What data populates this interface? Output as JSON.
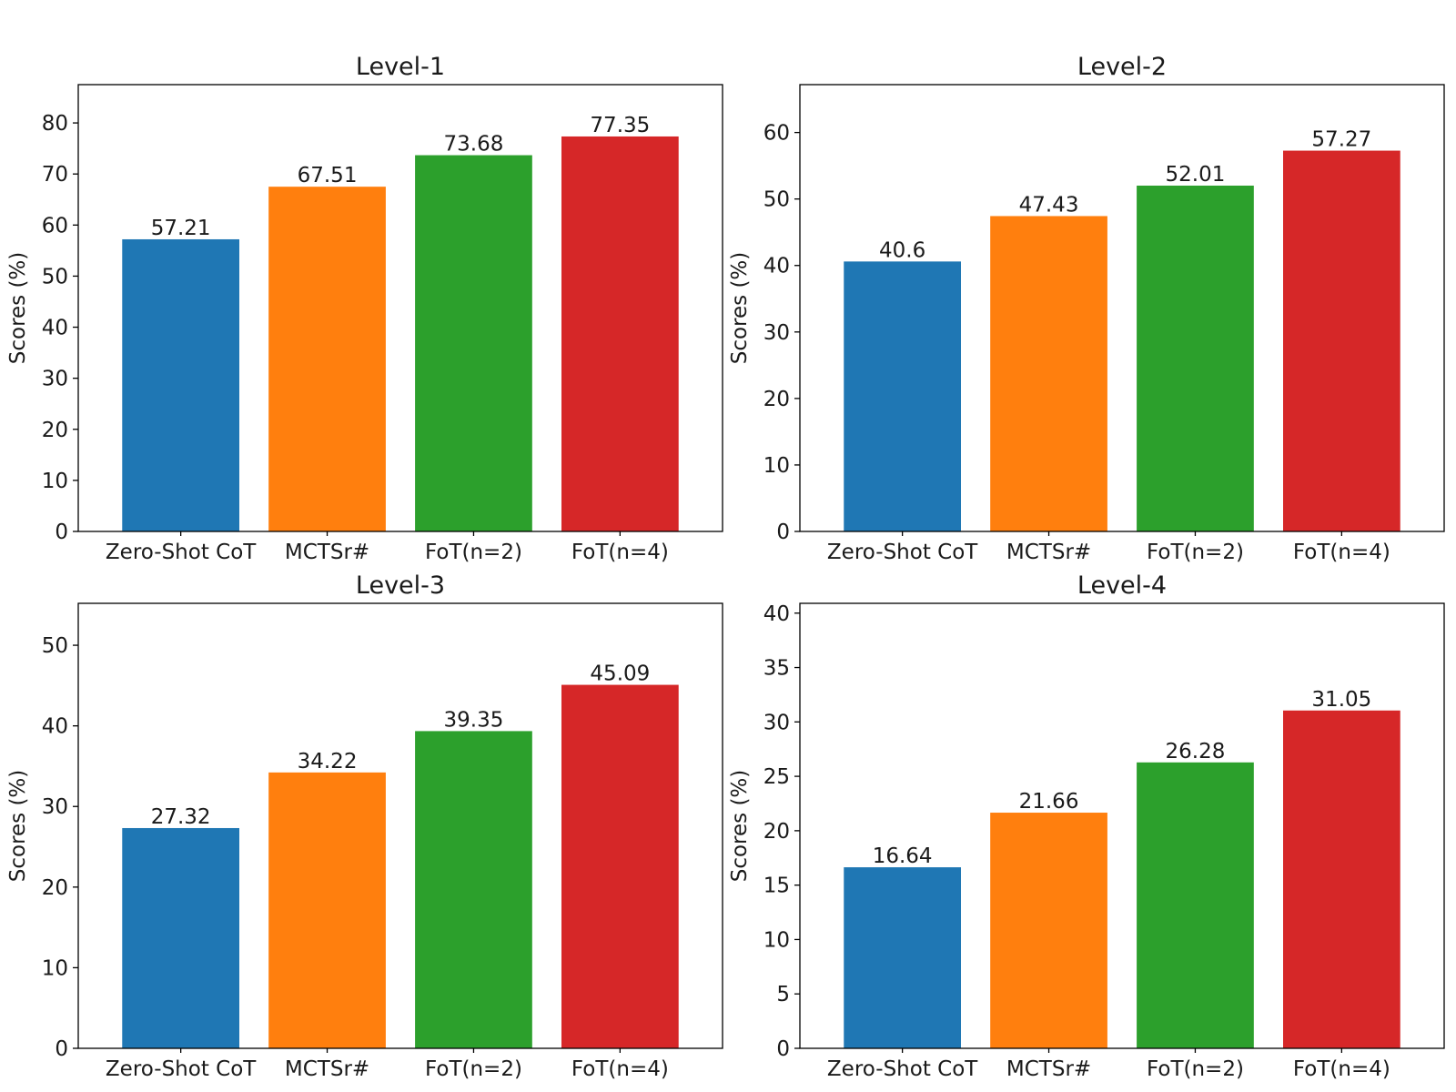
{
  "chart_data": [
    {
      "type": "bar",
      "title": "Level-1",
      "xlabel": "",
      "ylabel": "Scores (%)",
      "categories": [
        "Zero-Shot CoT",
        "MCTSr#",
        "FoT(n=2)",
        "FoT(n=4)"
      ],
      "values": [
        57.21,
        67.51,
        73.68,
        77.35
      ],
      "value_labels": [
        "57.21",
        "67.51",
        "73.68",
        "77.35"
      ],
      "colors": [
        "#1f77b4",
        "#ff7f0e",
        "#2ca02c",
        "#d62728"
      ],
      "ylim": [
        0,
        87.5
      ],
      "yticks": [
        0,
        10,
        20,
        30,
        40,
        50,
        60,
        70,
        80
      ],
      "ytick_labels": [
        "0",
        "10",
        "20",
        "30",
        "40",
        "50",
        "60",
        "70",
        "80"
      ],
      "grid": false
    },
    {
      "type": "bar",
      "title": "Level-2",
      "xlabel": "",
      "ylabel": "Scores (%)",
      "categories": [
        "Zero-Shot CoT",
        "MCTSr#",
        "FoT(n=2)",
        "FoT(n=4)"
      ],
      "values": [
        40.6,
        47.43,
        52.01,
        57.27
      ],
      "value_labels": [
        "40.6",
        "47.43",
        "52.01",
        "57.27"
      ],
      "colors": [
        "#1f77b4",
        "#ff7f0e",
        "#2ca02c",
        "#d62728"
      ],
      "ylim": [
        0,
        67.2
      ],
      "yticks": [
        0,
        10,
        20,
        30,
        40,
        50,
        60
      ],
      "ytick_labels": [
        "0",
        "10",
        "20",
        "30",
        "40",
        "50",
        "60"
      ],
      "grid": false
    },
    {
      "type": "bar",
      "title": "Level-3",
      "xlabel": "",
      "ylabel": "Scores (%)",
      "categories": [
        "Zero-Shot CoT",
        "MCTSr#",
        "FoT(n=2)",
        "FoT(n=4)"
      ],
      "values": [
        27.32,
        34.22,
        39.35,
        45.09
      ],
      "value_labels": [
        "27.32",
        "34.22",
        "39.35",
        "45.09"
      ],
      "colors": [
        "#1f77b4",
        "#ff7f0e",
        "#2ca02c",
        "#d62728"
      ],
      "ylim": [
        0,
        55.2
      ],
      "yticks": [
        0,
        10,
        20,
        30,
        40,
        50
      ],
      "ytick_labels": [
        "0",
        "10",
        "20",
        "30",
        "40",
        "50"
      ],
      "grid": false
    },
    {
      "type": "bar",
      "title": "Level-4",
      "xlabel": "",
      "ylabel": "Scores (%)",
      "categories": [
        "Zero-Shot CoT",
        "MCTSr#",
        "FoT(n=2)",
        "FoT(n=4)"
      ],
      "values": [
        16.64,
        21.66,
        26.28,
        31.05
      ],
      "value_labels": [
        "16.64",
        "21.66",
        "26.28",
        "31.05"
      ],
      "colors": [
        "#1f77b4",
        "#ff7f0e",
        "#2ca02c",
        "#d62728"
      ],
      "ylim": [
        0,
        40.9
      ],
      "yticks": [
        0,
        5,
        10,
        15,
        20,
        25,
        30,
        35,
        40
      ],
      "ytick_labels": [
        "0",
        "5",
        "10",
        "15",
        "20",
        "25",
        "30",
        "35",
        "40"
      ],
      "grid": false
    }
  ]
}
